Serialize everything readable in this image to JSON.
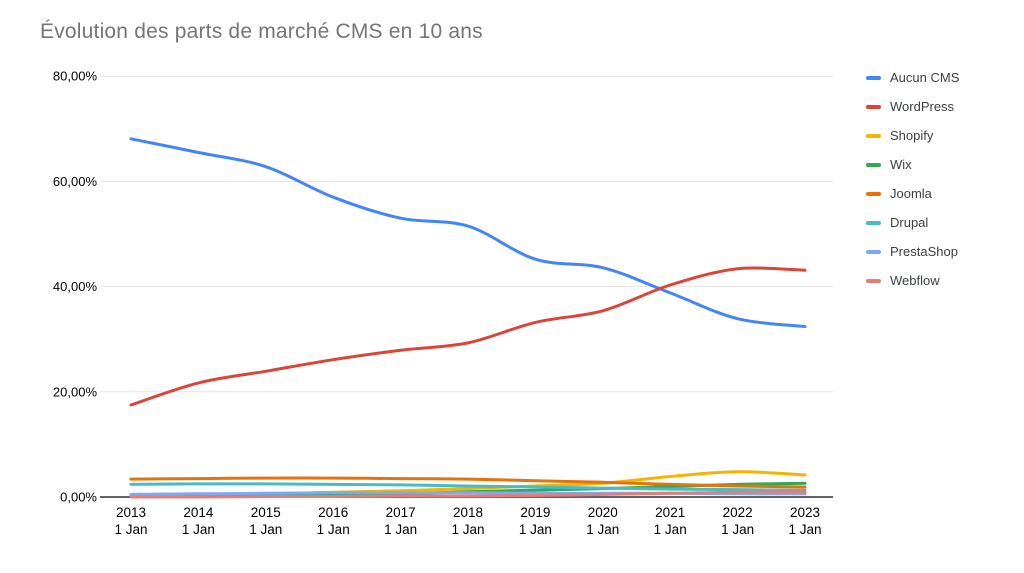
{
  "chart_data": {
    "type": "line",
    "title": "Évolution des parts de marché CMS en 10 ans",
    "smooth": true,
    "grid": true,
    "legend_position": "right",
    "x_axis": {
      "years": [
        "2013",
        "2014",
        "2015",
        "2016",
        "2017",
        "2018",
        "2019",
        "2020",
        "2021",
        "2022",
        "2023"
      ],
      "day_label": "1 Jan"
    },
    "y_axis": {
      "tick_values": [
        0,
        20,
        40,
        60,
        80
      ],
      "tick_labels": [
        "0,00%",
        "20,00%",
        "40,00%",
        "60,00%",
        "80,00%"
      ],
      "ylim": [
        0,
        80
      ]
    },
    "series": [
      {
        "name": "Aucun CMS",
        "color": "#4285F4",
        "values": [
          68.1,
          65.5,
          62.8,
          57.0,
          53.0,
          51.5,
          45.2,
          43.6,
          38.8,
          33.9,
          32.4
        ]
      },
      {
        "name": "WordPress",
        "color": "#DB4437",
        "values": [
          17.5,
          21.7,
          23.9,
          26.1,
          27.9,
          29.3,
          33.2,
          35.4,
          40.3,
          43.4,
          43.1
        ]
      },
      {
        "name": "Shopify",
        "color": "#F4B400",
        "values": [
          0.2,
          0.4,
          0.6,
          0.9,
          1.2,
          1.6,
          2.1,
          2.6,
          3.9,
          4.8,
          4.2
        ]
      },
      {
        "name": "Wix",
        "color": "#34A853",
        "values": [
          0.1,
          0.1,
          0.2,
          0.4,
          0.6,
          1.0,
          1.3,
          1.6,
          2.0,
          2.4,
          2.6
        ]
      },
      {
        "name": "Joomla",
        "color": "#E8710A",
        "values": [
          3.4,
          3.5,
          3.6,
          3.6,
          3.5,
          3.4,
          3.1,
          2.8,
          2.4,
          2.1,
          1.9
        ]
      },
      {
        "name": "Drupal",
        "color": "#46BDC6",
        "values": [
          2.4,
          2.5,
          2.5,
          2.4,
          2.3,
          2.1,
          1.9,
          1.7,
          1.5,
          1.4,
          1.3
        ]
      },
      {
        "name": "PrestaShop",
        "color": "#7BAAF7",
        "values": [
          0.5,
          0.6,
          0.7,
          0.8,
          0.8,
          0.8,
          0.7,
          0.7,
          0.7,
          0.6,
          0.6
        ]
      },
      {
        "name": "Webflow",
        "color": "#E67C73",
        "values": [
          0.0,
          0.0,
          0.1,
          0.1,
          0.2,
          0.2,
          0.3,
          0.5,
          0.7,
          0.9,
          1.0
        ]
      }
    ]
  }
}
